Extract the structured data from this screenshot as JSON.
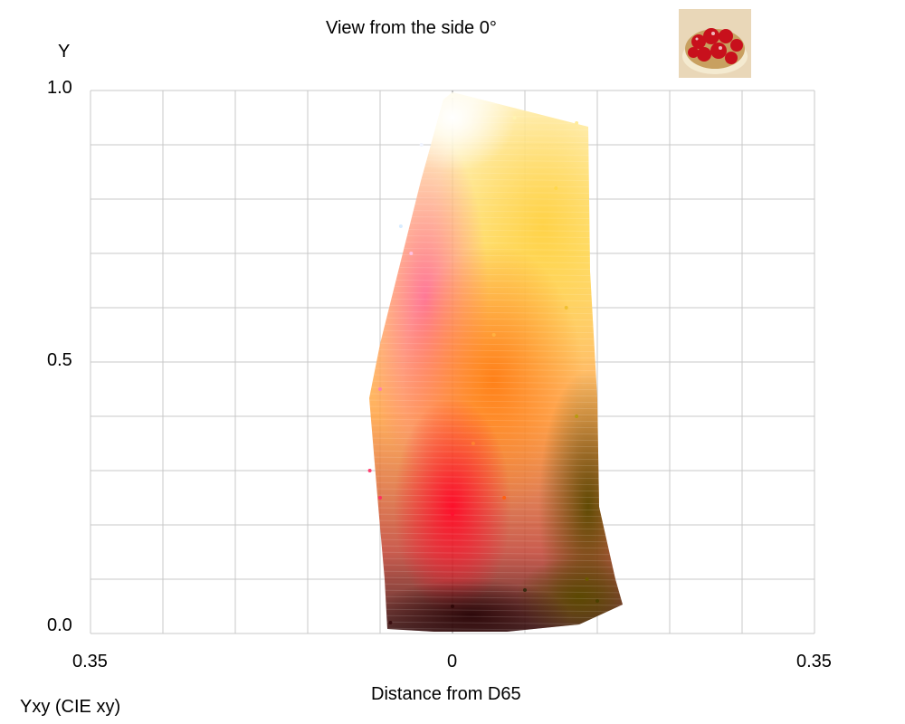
{
  "chart_data": {
    "type": "scatter",
    "title": "View from the side 0°",
    "xlabel": "Distance from D65",
    "ylabel": "Y",
    "color_space_label": "Yxy (CIE xy)",
    "xlim": [
      -0.35,
      0.35
    ],
    "ylim": [
      0.0,
      1.0
    ],
    "x_tick_labels": [
      "0.35",
      "0",
      "0.35"
    ],
    "y_tick_labels": [
      "0.0",
      "0.5",
      "1.0"
    ],
    "grid": true,
    "point_cloud": {
      "description_colors": [
        "#ffffff",
        "#ffd24a",
        "#ff7a1a",
        "#ff2040",
        "#ff70b0",
        "#6b5a00",
        "#3a0d10"
      ],
      "samples": [
        {
          "x": 0.0,
          "y": 0.99,
          "color": "#fffdf0"
        },
        {
          "x": 0.06,
          "y": 0.95,
          "color": "#fff3b0"
        },
        {
          "x": 0.12,
          "y": 0.94,
          "color": "#ffec9a"
        },
        {
          "x": -0.03,
          "y": 0.9,
          "color": "#f0f4ff"
        },
        {
          "x": -0.05,
          "y": 0.75,
          "color": "#d8ecff"
        },
        {
          "x": -0.04,
          "y": 0.7,
          "color": "#ffc0e0"
        },
        {
          "x": 0.1,
          "y": 0.82,
          "color": "#ffd84a"
        },
        {
          "x": 0.11,
          "y": 0.6,
          "color": "#f0c030"
        },
        {
          "x": 0.04,
          "y": 0.55,
          "color": "#ffb040"
        },
        {
          "x": 0.02,
          "y": 0.35,
          "color": "#ff8030"
        },
        {
          "x": -0.07,
          "y": 0.45,
          "color": "#ff80b0"
        },
        {
          "x": -0.08,
          "y": 0.3,
          "color": "#ff4070"
        },
        {
          "x": -0.07,
          "y": 0.25,
          "color": "#ff3060"
        },
        {
          "x": 0.0,
          "y": 0.22,
          "color": "#ff1030"
        },
        {
          "x": 0.05,
          "y": 0.25,
          "color": "#ff6010"
        },
        {
          "x": 0.12,
          "y": 0.4,
          "color": "#b89a10"
        },
        {
          "x": 0.13,
          "y": 0.1,
          "color": "#6a5a00"
        },
        {
          "x": 0.14,
          "y": 0.06,
          "color": "#4a4000"
        },
        {
          "x": 0.0,
          "y": 0.05,
          "color": "#300808"
        },
        {
          "x": -0.06,
          "y": 0.02,
          "color": "#3a0d10"
        },
        {
          "x": 0.07,
          "y": 0.08,
          "color": "#3a2a10"
        }
      ]
    }
  }
}
